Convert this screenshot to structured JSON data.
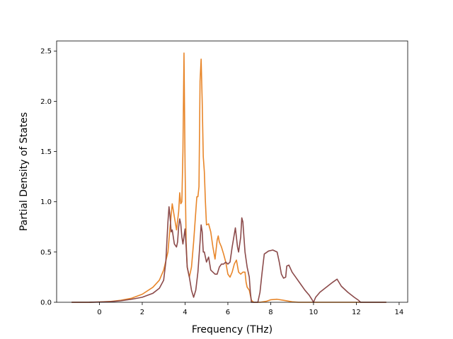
{
  "chart_data": {
    "type": "line",
    "title": "",
    "xlabel": "Frequency (THz)",
    "ylabel": "Partial Density of States",
    "xlim": [
      -2,
      14.4
    ],
    "ylim": [
      0,
      2.6
    ],
    "xticks": [
      0,
      2,
      4,
      6,
      8,
      10,
      12,
      14
    ],
    "yticks": [
      0.0,
      0.5,
      1.0,
      1.5,
      2.0,
      2.5
    ],
    "xtick_labels": [
      "0",
      "2",
      "4",
      "6",
      "8",
      "10",
      "12",
      "14"
    ],
    "ytick_labels": [
      "0.0",
      "0.5",
      "1.0",
      "1.5",
      "2.0",
      "2.5"
    ],
    "grid": false,
    "legend": "none",
    "series": [
      {
        "color": "#e8862a",
        "points": [
          [
            -1.3,
            0.0
          ],
          [
            -0.5,
            0.0
          ],
          [
            0.0,
            0.003
          ],
          [
            0.5,
            0.008
          ],
          [
            1.0,
            0.02
          ],
          [
            1.5,
            0.04
          ],
          [
            2.0,
            0.08
          ],
          [
            2.5,
            0.15
          ],
          [
            2.8,
            0.22
          ],
          [
            3.0,
            0.32
          ],
          [
            3.2,
            0.5
          ],
          [
            3.3,
            0.75
          ],
          [
            3.4,
            0.98
          ],
          [
            3.5,
            0.85
          ],
          [
            3.6,
            0.72
          ],
          [
            3.7,
            0.9
          ],
          [
            3.75,
            1.09
          ],
          [
            3.8,
            0.98
          ],
          [
            3.85,
            1.0
          ],
          [
            3.9,
            1.5
          ],
          [
            3.95,
            2.48
          ],
          [
            4.0,
            1.35
          ],
          [
            4.05,
            0.6
          ],
          [
            4.1,
            0.35
          ],
          [
            4.2,
            0.25
          ],
          [
            4.3,
            0.35
          ],
          [
            4.4,
            0.6
          ],
          [
            4.5,
            0.9
          ],
          [
            4.55,
            1.05
          ],
          [
            4.6,
            1.05
          ],
          [
            4.65,
            1.15
          ],
          [
            4.7,
            2.2
          ],
          [
            4.75,
            2.42
          ],
          [
            4.8,
            2.0
          ],
          [
            4.85,
            1.45
          ],
          [
            4.9,
            1.3
          ],
          [
            4.95,
            1.0
          ],
          [
            5.0,
            0.77
          ],
          [
            5.1,
            0.78
          ],
          [
            5.2,
            0.7
          ],
          [
            5.3,
            0.55
          ],
          [
            5.4,
            0.43
          ],
          [
            5.5,
            0.62
          ],
          [
            5.55,
            0.66
          ],
          [
            5.6,
            0.6
          ],
          [
            5.7,
            0.55
          ],
          [
            5.8,
            0.48
          ],
          [
            5.9,
            0.4
          ],
          [
            6.0,
            0.28
          ],
          [
            6.1,
            0.25
          ],
          [
            6.2,
            0.3
          ],
          [
            6.3,
            0.38
          ],
          [
            6.4,
            0.42
          ],
          [
            6.5,
            0.3
          ],
          [
            6.6,
            0.28
          ],
          [
            6.7,
            0.3
          ],
          [
            6.8,
            0.3
          ],
          [
            6.85,
            0.2
          ],
          [
            6.9,
            0.15
          ],
          [
            7.0,
            0.12
          ],
          [
            7.1,
            0.02
          ],
          [
            7.2,
            0.0
          ],
          [
            7.5,
            0.0
          ],
          [
            7.8,
            0.01
          ],
          [
            8.0,
            0.025
          ],
          [
            8.3,
            0.03
          ],
          [
            8.6,
            0.02
          ],
          [
            9.0,
            0.005
          ],
          [
            9.3,
            0.0
          ],
          [
            13.4,
            0.0
          ]
        ]
      },
      {
        "color": "#8b4a4a",
        "points": [
          [
            -1.3,
            0.0
          ],
          [
            -0.5,
            0.0
          ],
          [
            0.0,
            0.002
          ],
          [
            0.5,
            0.006
          ],
          [
            1.0,
            0.015
          ],
          [
            1.5,
            0.03
          ],
          [
            2.0,
            0.05
          ],
          [
            2.5,
            0.09
          ],
          [
            2.8,
            0.14
          ],
          [
            3.0,
            0.22
          ],
          [
            3.1,
            0.4
          ],
          [
            3.2,
            0.8
          ],
          [
            3.25,
            0.95
          ],
          [
            3.3,
            0.85
          ],
          [
            3.35,
            0.7
          ],
          [
            3.4,
            0.72
          ],
          [
            3.5,
            0.58
          ],
          [
            3.6,
            0.55
          ],
          [
            3.65,
            0.6
          ],
          [
            3.7,
            0.75
          ],
          [
            3.75,
            0.83
          ],
          [
            3.8,
            0.78
          ],
          [
            3.85,
            0.65
          ],
          [
            3.9,
            0.58
          ],
          [
            4.0,
            0.73
          ],
          [
            4.05,
            0.55
          ],
          [
            4.1,
            0.35
          ],
          [
            4.2,
            0.25
          ],
          [
            4.3,
            0.12
          ],
          [
            4.4,
            0.05
          ],
          [
            4.5,
            0.12
          ],
          [
            4.6,
            0.3
          ],
          [
            4.7,
            0.6
          ],
          [
            4.75,
            0.77
          ],
          [
            4.8,
            0.7
          ],
          [
            4.85,
            0.5
          ],
          [
            4.9,
            0.5
          ],
          [
            5.0,
            0.4
          ],
          [
            5.1,
            0.45
          ],
          [
            5.2,
            0.32
          ],
          [
            5.3,
            0.3
          ],
          [
            5.4,
            0.28
          ],
          [
            5.5,
            0.28
          ],
          [
            5.6,
            0.35
          ],
          [
            5.7,
            0.38
          ],
          [
            5.8,
            0.38
          ],
          [
            5.9,
            0.4
          ],
          [
            6.0,
            0.38
          ],
          [
            6.1,
            0.4
          ],
          [
            6.2,
            0.55
          ],
          [
            6.35,
            0.74
          ],
          [
            6.45,
            0.55
          ],
          [
            6.5,
            0.5
          ],
          [
            6.6,
            0.65
          ],
          [
            6.65,
            0.84
          ],
          [
            6.7,
            0.8
          ],
          [
            6.75,
            0.65
          ],
          [
            6.8,
            0.5
          ],
          [
            6.9,
            0.35
          ],
          [
            7.0,
            0.25
          ],
          [
            7.05,
            0.1
          ],
          [
            7.1,
            0.0
          ],
          [
            7.4,
            0.0
          ],
          [
            7.5,
            0.1
          ],
          [
            7.6,
            0.3
          ],
          [
            7.7,
            0.48
          ],
          [
            7.9,
            0.51
          ],
          [
            8.1,
            0.52
          ],
          [
            8.3,
            0.5
          ],
          [
            8.4,
            0.4
          ],
          [
            8.5,
            0.28
          ],
          [
            8.6,
            0.24
          ],
          [
            8.7,
            0.25
          ],
          [
            8.75,
            0.36
          ],
          [
            8.85,
            0.37
          ],
          [
            9.0,
            0.3
          ],
          [
            9.2,
            0.24
          ],
          [
            9.4,
            0.18
          ],
          [
            9.6,
            0.12
          ],
          [
            9.8,
            0.07
          ],
          [
            9.95,
            0.02
          ],
          [
            10.0,
            0.0
          ],
          [
            10.1,
            0.05
          ],
          [
            10.3,
            0.1
          ],
          [
            10.6,
            0.15
          ],
          [
            10.9,
            0.2
          ],
          [
            11.1,
            0.23
          ],
          [
            11.3,
            0.16
          ],
          [
            11.6,
            0.1
          ],
          [
            11.9,
            0.05
          ],
          [
            12.1,
            0.02
          ],
          [
            12.2,
            0.0
          ],
          [
            13.4,
            0.0
          ]
        ]
      }
    ]
  }
}
